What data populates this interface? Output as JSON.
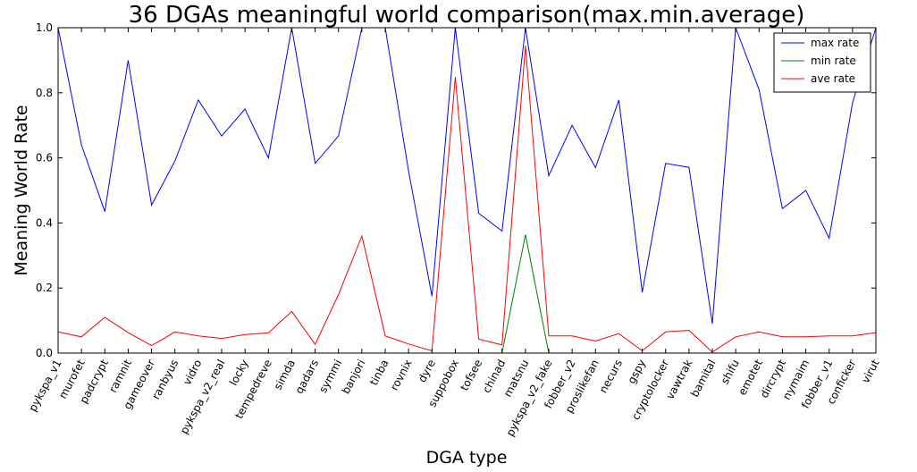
{
  "chart_data": {
    "type": "line",
    "title": "36 DGAs meaningful world comparison(max.min.average)",
    "xlabel": "DGA type",
    "ylabel": "Meaning World Rate",
    "ylim": [
      0,
      1.0
    ],
    "yticks": [
      "0.0",
      "0.2",
      "0.4",
      "0.6",
      "0.8",
      "1.0"
    ],
    "grid": false,
    "legend_position": "top-right",
    "categories": [
      "pykspa_v1",
      "murofet",
      "padcrypt",
      "ramnit",
      "gameover",
      "ranbyus",
      "vidro",
      "pykspa_v2_real",
      "locky",
      "tempedreve",
      "simda",
      "qadars",
      "symmi",
      "banjori",
      "tinba",
      "rovnix",
      "dyre",
      "suppobox",
      "tofsee",
      "chinad",
      "matsnu",
      "pykspa_v2_fake",
      "fobber_v2",
      "proslikefan",
      "necurs",
      "gspy",
      "cryptolocker",
      "vawtrak",
      "bamital",
      "shifu",
      "emotet",
      "dircrypt",
      "nymaim",
      "fobber_v1",
      "conficker",
      "virut"
    ],
    "series": [
      {
        "name": "max rate",
        "color": "#0000ff",
        "values": [
          1.0,
          0.64,
          0.435,
          0.9,
          0.455,
          0.59,
          0.778,
          0.667,
          0.75,
          0.6,
          1.0,
          0.583,
          0.667,
          1.0,
          1.0,
          0.56,
          0.175,
          1.0,
          0.43,
          0.375,
          1.0,
          0.545,
          0.7,
          0.57,
          0.778,
          0.187,
          0.583,
          0.571,
          0.09,
          1.0,
          0.81,
          0.444,
          0.5,
          0.353,
          0.77,
          1.0
        ]
      },
      {
        "name": "min rate",
        "color": "#008000",
        "values": [
          0,
          0,
          0,
          0,
          0,
          0,
          0,
          0,
          0,
          0,
          0,
          0,
          0,
          0,
          0,
          0,
          0,
          0,
          0,
          0,
          0.364,
          0,
          0,
          0,
          0,
          0,
          0,
          0,
          0,
          0,
          0,
          0,
          0,
          0,
          0,
          0
        ]
      },
      {
        "name": "ave rate",
        "color": "#ff0000",
        "values": [
          0.065,
          0.05,
          0.11,
          0.063,
          0.023,
          0.065,
          0.053,
          0.045,
          0.057,
          0.062,
          0.128,
          0.027,
          0.18,
          0.36,
          0.053,
          0.028,
          0.007,
          0.848,
          0.043,
          0.025,
          0.945,
          0.053,
          0.053,
          0.037,
          0.06,
          0.007,
          0.065,
          0.07,
          0.003,
          0.05,
          0.065,
          0.05,
          0.05,
          0.053,
          0.053,
          0.063
        ]
      }
    ]
  }
}
